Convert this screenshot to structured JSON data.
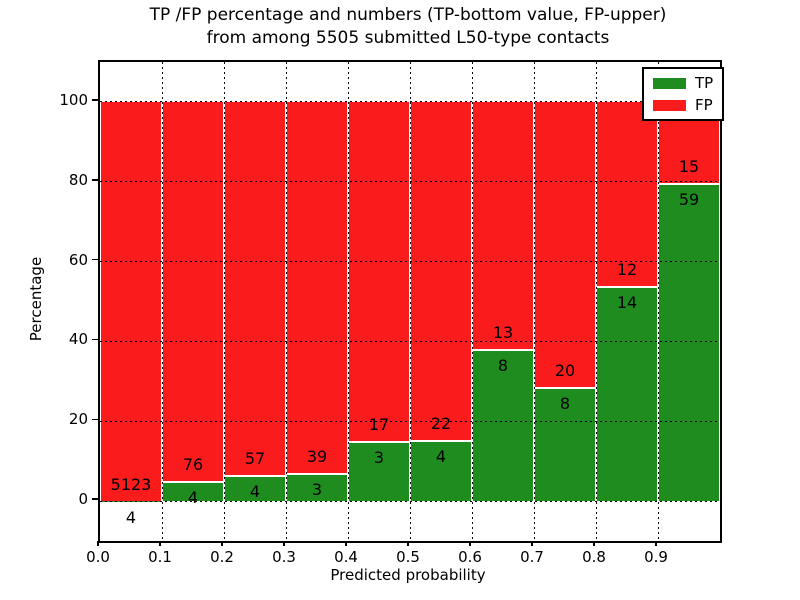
{
  "figure": {
    "title_line1": "TP /FP percentage and numbers (TP-bottom value, FP-upper)",
    "title_line2": "from among 5505 submitted L50-type contacts",
    "xlabel": "Predicted probability",
    "ylabel": "Percentage"
  },
  "colors": {
    "tp": "#1E8C1E",
    "fp": "#FA1C1C",
    "grid": "#000000",
    "bar_edge": "#FFFFFF",
    "axis": "#000000",
    "background": "#FFFFFF"
  },
  "legend": {
    "items": [
      {
        "label": "TP",
        "color_key": "tp"
      },
      {
        "label": "FP",
        "color_key": "fp"
      }
    ]
  },
  "chart_data": {
    "type": "bar",
    "stacked": true,
    "normalized_to_percent": 100,
    "title": "TP /FP percentage and numbers (TP-bottom value, FP-upper) from among 5505 submitted L50-type contacts",
    "xlabel": "Predicted probability",
    "ylabel": "Percentage",
    "total_contacts": 5505,
    "bins": [
      {
        "range": "0.0-0.1",
        "tp": 4,
        "fp": 5123,
        "tp_percent": 0.08
      },
      {
        "range": "0.1-0.2",
        "tp": 4,
        "fp": 76,
        "tp_percent": 5.0
      },
      {
        "range": "0.2-0.3",
        "tp": 4,
        "fp": 57,
        "tp_percent": 6.56
      },
      {
        "range": "0.3-0.4",
        "tp": 3,
        "fp": 39,
        "tp_percent": 7.14
      },
      {
        "range": "0.4-0.5",
        "tp": 3,
        "fp": 17,
        "tp_percent": 15.0
      },
      {
        "range": "0.5-0.6",
        "tp": 4,
        "fp": 22,
        "tp_percent": 15.38
      },
      {
        "range": "0.6-0.7",
        "tp": 8,
        "fp": 13,
        "tp_percent": 38.1
      },
      {
        "range": "0.7-0.8",
        "tp": 8,
        "fp": 20,
        "tp_percent": 28.57
      },
      {
        "range": "0.8-0.9",
        "tp": 14,
        "fp": 12,
        "tp_percent": 53.85
      },
      {
        "range": "0.9-1.0",
        "tp": 59,
        "fp": 15,
        "tp_percent": 79.73
      }
    ],
    "xticks": [
      "0.0",
      "0.1",
      "0.2",
      "0.3",
      "0.4",
      "0.5",
      "0.6",
      "0.7",
      "0.8",
      "0.9"
    ],
    "yticks": [
      0,
      20,
      40,
      60,
      80,
      100
    ],
    "xlim": [
      0.0,
      1.0
    ],
    "ylim": [
      -10,
      110
    ],
    "grid": "dotted, drawn above bars",
    "legend_position": "upper right"
  }
}
